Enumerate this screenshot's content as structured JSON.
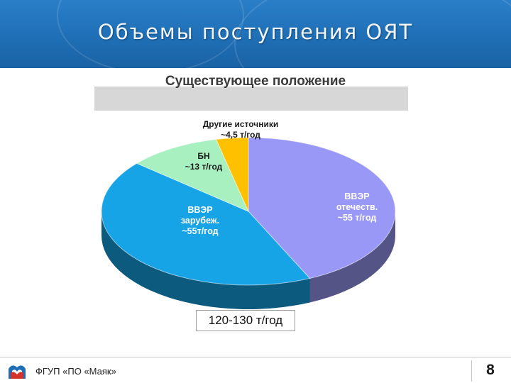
{
  "header": {
    "title": "Объемы поступления ОЯТ"
  },
  "chart_data": {
    "type": "pie",
    "title": "Существующее положение",
    "total_label": "120-130 т/год",
    "slices": [
      {
        "lines": [
          "ВВЭР",
          "отечеств.",
          "~55 т/год"
        ],
        "value": 55,
        "color": "#9a98f6"
      },
      {
        "lines": [
          "ВВЭР",
          "зарубеж.",
          "~55т/год"
        ],
        "value": 55,
        "color": "#17a4e6"
      },
      {
        "lines": [
          "БН",
          "~13 т/год"
        ],
        "value": 13,
        "color": "#a8f0c0"
      },
      {
        "lines": [
          "Другие источники",
          "~4,5 т/год"
        ],
        "value": 4.5,
        "color": "#ffc000"
      }
    ]
  },
  "footer": {
    "org": "ФГУП «ПО «Маяк»",
    "page": "8"
  }
}
